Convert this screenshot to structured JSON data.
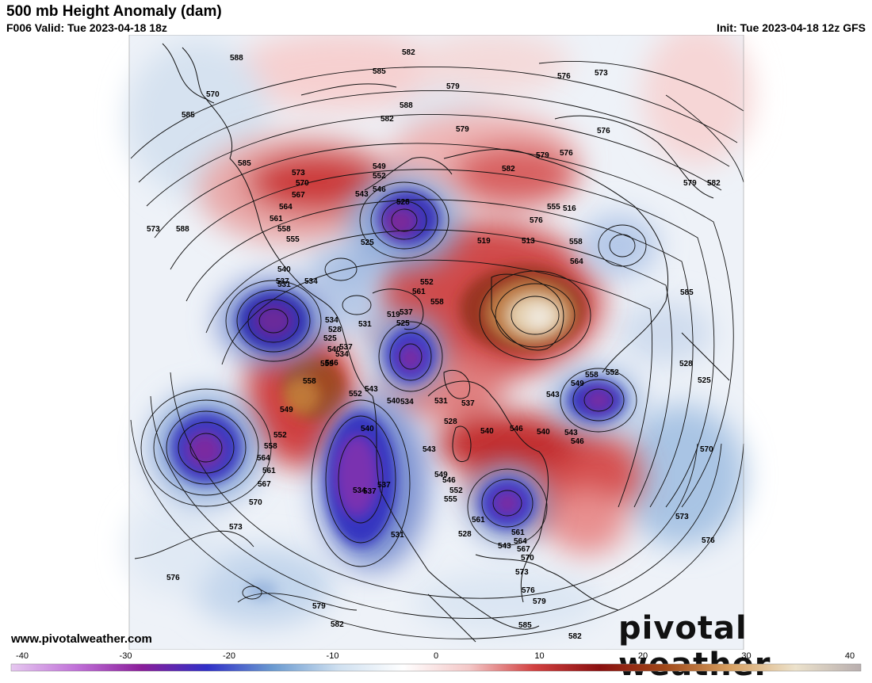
{
  "header": {
    "title": "500 mb Height Anomaly (dam)",
    "valid": "F006 Valid: Tue 2023-04-18 18z",
    "init": "Init: Tue 2023-04-18 12z GFS"
  },
  "footer": {
    "website": "www.pivotalweather.com",
    "brand": "pivotal weather"
  },
  "colorbar": {
    "ticks": [
      "-40",
      "-30",
      "-20",
      "-10",
      "0",
      "10",
      "20",
      "30",
      "40"
    ],
    "range": [
      -40,
      40
    ],
    "stops": [
      "#e6c8f0",
      "#c070d8",
      "#8a1e9a",
      "#3030c8",
      "#6a9ad0",
      "#cfe0f0",
      "#ffffff",
      "#f4c8c8",
      "#d24040",
      "#8a1010",
      "#a04818",
      "#d8a060",
      "#ece2cc",
      "#b8aeae"
    ]
  },
  "anomaly_centers": [
    {
      "id": "gulf-alaska-low",
      "sign": "negative",
      "strength": "strong"
    },
    {
      "id": "bering-low",
      "sign": "negative",
      "strength": "strong"
    },
    {
      "id": "siberia-low",
      "sign": "negative",
      "strength": "strong"
    },
    {
      "id": "pole-low",
      "sign": "negative",
      "strength": "strong"
    },
    {
      "id": "western-us-trough",
      "sign": "negative",
      "strength": "strong"
    },
    {
      "id": "east-canada-low",
      "sign": "negative",
      "strength": "strong"
    },
    {
      "id": "north-atlantic-low",
      "sign": "negative",
      "strength": "strong"
    },
    {
      "id": "kara-sea-low",
      "sign": "negative",
      "strength": "moderate"
    },
    {
      "id": "scandinavia-high",
      "sign": "positive",
      "strength": "very strong"
    },
    {
      "id": "alaska-ridge",
      "sign": "positive",
      "strength": "strong"
    },
    {
      "id": "greenland-ridge",
      "sign": "positive",
      "strength": "strong"
    },
    {
      "id": "asia-ridge",
      "sign": "positive",
      "strength": "strong"
    }
  ],
  "contour_labels": [
    "588",
    "585",
    "582",
    "579",
    "576",
    "573",
    "570",
    "567",
    "564",
    "561",
    "558",
    "555",
    "552",
    "549",
    "546",
    "543",
    "540",
    "537",
    "534",
    "531",
    "528",
    "525",
    "519",
    "513",
    "516"
  ],
  "height_labels": [
    "588",
    "585",
    "582",
    "579",
    "576",
    "573",
    "570",
    "588",
    "585",
    "582",
    "579",
    "576",
    "573",
    "588",
    "585",
    "582",
    "579",
    "576",
    "573",
    "570",
    "567",
    "564",
    "561",
    "558",
    "555",
    "552",
    "549",
    "546",
    "543",
    "540",
    "537",
    "534",
    "531",
    "528",
    "525",
    "519",
    "513",
    "516",
    "552",
    "558",
    "561",
    "537",
    "531",
    "525",
    "519",
    "534",
    "528",
    "525",
    "540",
    "537",
    "534",
    "546",
    "558",
    "555",
    "552",
    "543",
    "540",
    "534",
    "531",
    "528",
    "537",
    "540",
    "546",
    "543",
    "549",
    "558",
    "552",
    "540",
    "543",
    "546",
    "549",
    "552",
    "558",
    "564",
    "561",
    "567",
    "570",
    "573",
    "576",
    "579",
    "582",
    "585",
    "582",
    "579",
    "576",
    "573",
    "570",
    "567",
    "564",
    "561",
    "555",
    "552",
    "549",
    "546",
    "543",
    "540",
    "537",
    "534",
    "531",
    "528",
    "525",
    "570",
    "573",
    "576",
    "579",
    "582",
    "585",
    "576",
    "558",
    "555",
    "564",
    "561",
    "528",
    "543",
    "537"
  ]
}
